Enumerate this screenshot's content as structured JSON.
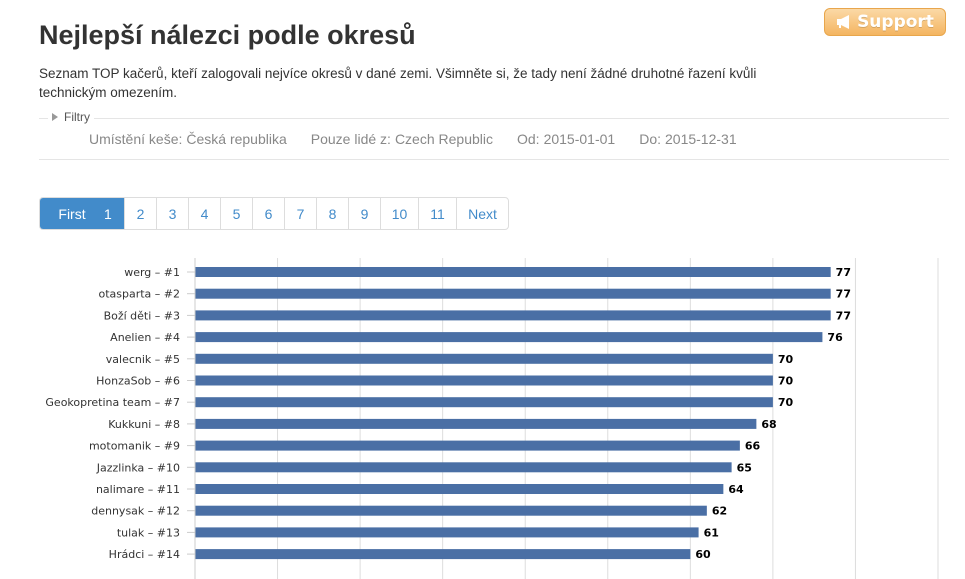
{
  "support": {
    "label": "Support"
  },
  "header": {
    "title": "Nejlepší nálezci podle okresů",
    "description": "Seznam TOP kačerů, kteří zalogovali nejvíce okresů v dané zemi. Všimněte si, že tady není žádné druhotné řazení kvůli technickým omezením."
  },
  "filters": {
    "toggle_label": "Filtry",
    "items": [
      {
        "label": "Umístění keše:",
        "value": "Česká republika"
      },
      {
        "label": "Pouze lidé z:",
        "value": "Czech Republic"
      },
      {
        "label": "Od:",
        "value": "2015-01-01"
      },
      {
        "label": "Do:",
        "value": "2015-12-31"
      }
    ]
  },
  "pagination": {
    "first_label": "First",
    "pages": [
      "1",
      "2",
      "3",
      "4",
      "5",
      "6",
      "7",
      "8",
      "9",
      "10",
      "11"
    ],
    "active_page": "1",
    "next_label": "Next"
  },
  "colors": {
    "bar": "#4a6fa5",
    "grid": "#dddddd",
    "accent": "#428bca"
  },
  "chart_data": {
    "type": "bar",
    "orientation": "horizontal",
    "categories": [
      "werg – #1",
      "otasparta – #2",
      "Boží děti – #3",
      "Anelien – #4",
      "valecnik – #5",
      "HonzaSob – #6",
      "Geokopretina team – #7",
      "Kukkuni – #8",
      "motomanik – #9",
      "Jazzlinka – #10",
      "nalimare – #11",
      "dennysak – #12",
      "tulak – #13",
      "Hrádci – #14"
    ],
    "values": [
      77,
      77,
      77,
      76,
      70,
      70,
      70,
      68,
      66,
      65,
      64,
      62,
      61,
      60
    ],
    "xlim": [
      0,
      90
    ],
    "grid": true
  }
}
